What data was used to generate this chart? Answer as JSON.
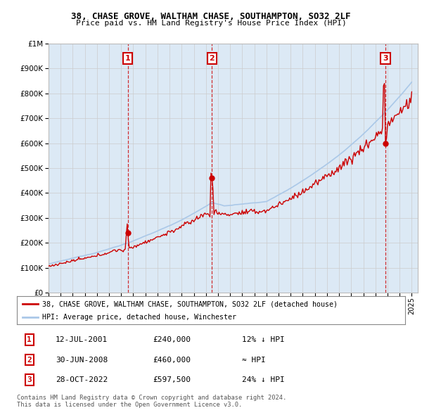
{
  "title": "38, CHASE GROVE, WALTHAM CHASE, SOUTHAMPTON, SO32 2LF",
  "subtitle": "Price paid vs. HM Land Registry's House Price Index (HPI)",
  "ylim": [
    0,
    1000000
  ],
  "yticks": [
    0,
    100000,
    200000,
    300000,
    400000,
    500000,
    600000,
    700000,
    800000,
    900000,
    1000000
  ],
  "xlim_start": 1995.0,
  "xlim_end": 2025.5,
  "sale_dates": [
    2001.54,
    2008.5,
    2022.83
  ],
  "sale_prices": [
    240000,
    460000,
    597500
  ],
  "sale_labels": [
    "1",
    "2",
    "3"
  ],
  "hpi_color": "#aac8e8",
  "price_color": "#cc0000",
  "vline_color": "#cc0000",
  "legend_entries": [
    "38, CHASE GROVE, WALTHAM CHASE, SOUTHAMPTON, SO32 2LF (detached house)",
    "HPI: Average price, detached house, Winchester"
  ],
  "table_rows": [
    [
      "1",
      "12-JUL-2001",
      "£240,000",
      "12% ↓ HPI"
    ],
    [
      "2",
      "30-JUN-2008",
      "£460,000",
      "≈ HPI"
    ],
    [
      "3",
      "28-OCT-2022",
      "£597,500",
      "24% ↓ HPI"
    ]
  ],
  "footer": "Contains HM Land Registry data © Crown copyright and database right 2024.\nThis data is licensed under the Open Government Licence v3.0.",
  "background_color": "#dce9f5",
  "plot_bg_color": "#ffffff"
}
